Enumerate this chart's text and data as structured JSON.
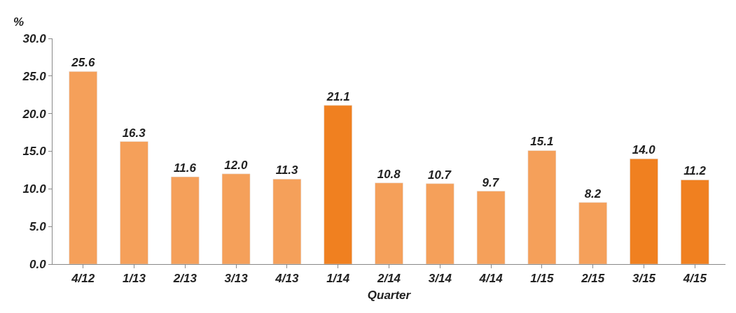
{
  "chart_data": {
    "type": "bar",
    "xlabel": "Quarter",
    "ylabel": "%",
    "categories": [
      "4/12",
      "1/13",
      "2/13",
      "3/13",
      "4/13",
      "1/14",
      "2/14",
      "3/14",
      "4/14",
      "1/15",
      "2/15",
      "3/15",
      "4/15"
    ],
    "values": [
      25.6,
      16.3,
      11.6,
      12.0,
      11.3,
      21.1,
      10.8,
      10.7,
      9.7,
      15.1,
      8.2,
      14.0,
      11.2
    ],
    "colors": [
      "#f5a05a",
      "#f5a05a",
      "#f5a05a",
      "#f5a05a",
      "#f5a05a",
      "#f08020",
      "#f5a05a",
      "#f5a05a",
      "#f5a05a",
      "#f5a05a",
      "#f5a05a",
      "#f08020",
      "#f08020"
    ],
    "value_labels": [
      "25.6",
      "16.3",
      "11.6",
      "12.0",
      "11.3",
      "21.1",
      "10.8",
      "10.7",
      "9.7",
      "15.1",
      "8.2",
      "14.0",
      "11.2"
    ],
    "ylim": [
      0,
      30
    ],
    "yticks": [
      {
        "value": 0,
        "label": "0.0"
      },
      {
        "value": 5,
        "label": "5.0"
      },
      {
        "value": 10,
        "label": "10.0"
      },
      {
        "value": 15,
        "label": "15.0"
      },
      {
        "value": 20,
        "label": "20.0"
      },
      {
        "value": 25,
        "label": "25.0"
      },
      {
        "value": 30,
        "label": "30.0"
      }
    ]
  }
}
